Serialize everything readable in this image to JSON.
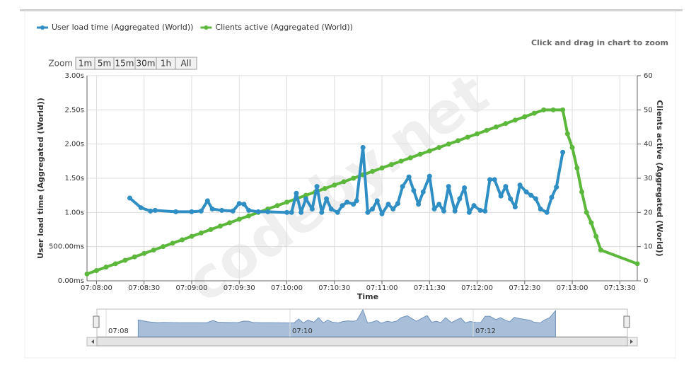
{
  "chart_data": {
    "type": "line",
    "hint": "Click and drag in chart to zoom",
    "zoom_label": "Zoom",
    "zoom_buttons": [
      "1m",
      "5m",
      "15m",
      "30m",
      "1h",
      "All"
    ],
    "watermark": "codeby.net",
    "xlabel": "Time",
    "ylabel": "User load time (Aggregated (World))",
    "y2label": "Clients active (Aggregated (World))",
    "xlim": [
      "07:07:54",
      "07:13:41"
    ],
    "xticks": [
      "07:08:00",
      "07:08:30",
      "07:09:00",
      "07:09:30",
      "07:10:00",
      "07:10:30",
      "07:11:00",
      "07:11:30",
      "07:12:00",
      "07:12:30",
      "07:13:00",
      "07:13:30"
    ],
    "ylim": [
      0,
      3
    ],
    "yticks": [
      {
        "value": 0,
        "label": "0.00ms"
      },
      {
        "value": 0.5,
        "label": "500.00ms"
      },
      {
        "value": 1,
        "label": "1.00s"
      },
      {
        "value": 1.5,
        "label": "1.50s"
      },
      {
        "value": 2,
        "label": "2.00s"
      },
      {
        "value": 2.5,
        "label": "2.50s"
      },
      {
        "value": 3,
        "label": "3.00s"
      }
    ],
    "y2lim": [
      0,
      60
    ],
    "y2ticks": [
      0,
      10,
      20,
      30,
      40,
      50,
      60
    ],
    "grid": true,
    "legend": "top-left",
    "navigator_labels": [
      "07:08",
      "07:10",
      "07:12"
    ],
    "series": [
      {
        "name": "User load time (Aggregated (World))",
        "color": "#2f8fc4",
        "axis": "y",
        "x": [
          "07:08:21",
          "07:08:28",
          "07:08:34",
          "07:08:37",
          "07:08:50",
          "07:09:00",
          "07:09:06",
          "07:09:10",
          "07:09:13",
          "07:09:19",
          "07:09:26",
          "07:09:30",
          "07:09:33",
          "07:09:36",
          "07:09:42",
          "07:09:48",
          "07:10:00",
          "07:10:03",
          "07:10:06",
          "07:10:09",
          "07:10:12",
          "07:10:16",
          "07:10:19",
          "07:10:22",
          "07:10:25",
          "07:10:28",
          "07:10:32",
          "07:10:35",
          "07:10:38",
          "07:10:42",
          "07:10:44",
          "07:10:48",
          "07:10:51",
          "07:10:54",
          "07:10:57",
          "07:11:00",
          "07:11:04",
          "07:11:07",
          "07:11:10",
          "07:11:13",
          "07:11:17",
          "07:11:20",
          "07:11:23",
          "07:11:26",
          "07:11:30",
          "07:11:33",
          "07:11:36",
          "07:11:39",
          "07:11:42",
          "07:11:46",
          "07:11:49",
          "07:11:52",
          "07:11:55",
          "07:11:58",
          "07:12:02",
          "07:12:05",
          "07:12:08",
          "07:12:11",
          "07:12:15",
          "07:12:18",
          "07:12:21",
          "07:12:24",
          "07:12:27",
          "07:12:31",
          "07:12:34",
          "07:12:37",
          "07:12:40",
          "07:12:44",
          "07:12:47",
          "07:12:50",
          "07:12:54"
        ],
        "values": [
          1.21,
          1.07,
          1.02,
          1.03,
          1.01,
          1.01,
          1.02,
          1.17,
          1.05,
          1.03,
          1.02,
          1.13,
          1.12,
          1.03,
          1.01,
          1.01,
          1.0,
          1.0,
          1.28,
          1.0,
          1.2,
          1.05,
          1.38,
          1.0,
          1.2,
          1.05,
          1.0,
          1.1,
          1.15,
          1.12,
          1.17,
          1.95,
          1.0,
          1.05,
          1.17,
          0.98,
          1.12,
          1.05,
          1.13,
          1.38,
          1.52,
          1.32,
          1.12,
          1.3,
          1.53,
          1.05,
          1.12,
          1.02,
          1.38,
          1.02,
          1.2,
          1.36,
          1.0,
          1.1,
          1.03,
          1.02,
          1.48,
          1.48,
          1.24,
          1.38,
          1.2,
          1.08,
          1.4,
          1.3,
          1.25,
          1.2,
          1.05,
          1.0,
          1.22,
          1.37,
          1.88
        ]
      },
      {
        "name": "Clients active (Aggregated (World))",
        "color": "#5cb83a",
        "axis": "y2",
        "x": [
          "07:07:54",
          "07:08:00",
          "07:08:06",
          "07:08:12",
          "07:08:18",
          "07:08:24",
          "07:08:30",
          "07:08:36",
          "07:08:42",
          "07:08:48",
          "07:08:54",
          "07:09:00",
          "07:09:06",
          "07:09:12",
          "07:09:18",
          "07:09:24",
          "07:09:30",
          "07:09:36",
          "07:09:42",
          "07:09:48",
          "07:09:54",
          "07:10:00",
          "07:10:06",
          "07:10:12",
          "07:10:18",
          "07:10:24",
          "07:10:30",
          "07:10:36",
          "07:10:42",
          "07:10:48",
          "07:10:54",
          "07:11:00",
          "07:11:06",
          "07:11:12",
          "07:11:18",
          "07:11:24",
          "07:11:30",
          "07:11:36",
          "07:11:42",
          "07:11:48",
          "07:11:54",
          "07:12:00",
          "07:12:06",
          "07:12:12",
          "07:12:18",
          "07:12:24",
          "07:12:30",
          "07:12:36",
          "07:12:42",
          "07:12:48",
          "07:12:54",
          "07:12:57",
          "07:13:00",
          "07:13:03",
          "07:13:06",
          "07:13:09",
          "07:13:12",
          "07:13:15",
          "07:13:18",
          "07:13:41"
        ],
        "values": [
          2,
          3,
          4,
          5,
          6,
          7,
          8,
          9,
          10,
          11,
          12,
          13,
          14,
          15,
          16,
          17,
          18,
          19,
          20,
          21,
          22,
          23,
          24,
          25,
          26,
          27,
          28,
          29,
          30,
          31,
          32,
          33,
          34,
          35,
          36,
          37,
          38,
          39,
          40,
          41,
          42,
          43,
          44,
          45,
          46,
          47,
          48,
          49,
          50,
          50,
          50,
          43,
          39,
          33,
          26,
          20,
          17,
          13,
          9,
          5
        ]
      }
    ]
  }
}
